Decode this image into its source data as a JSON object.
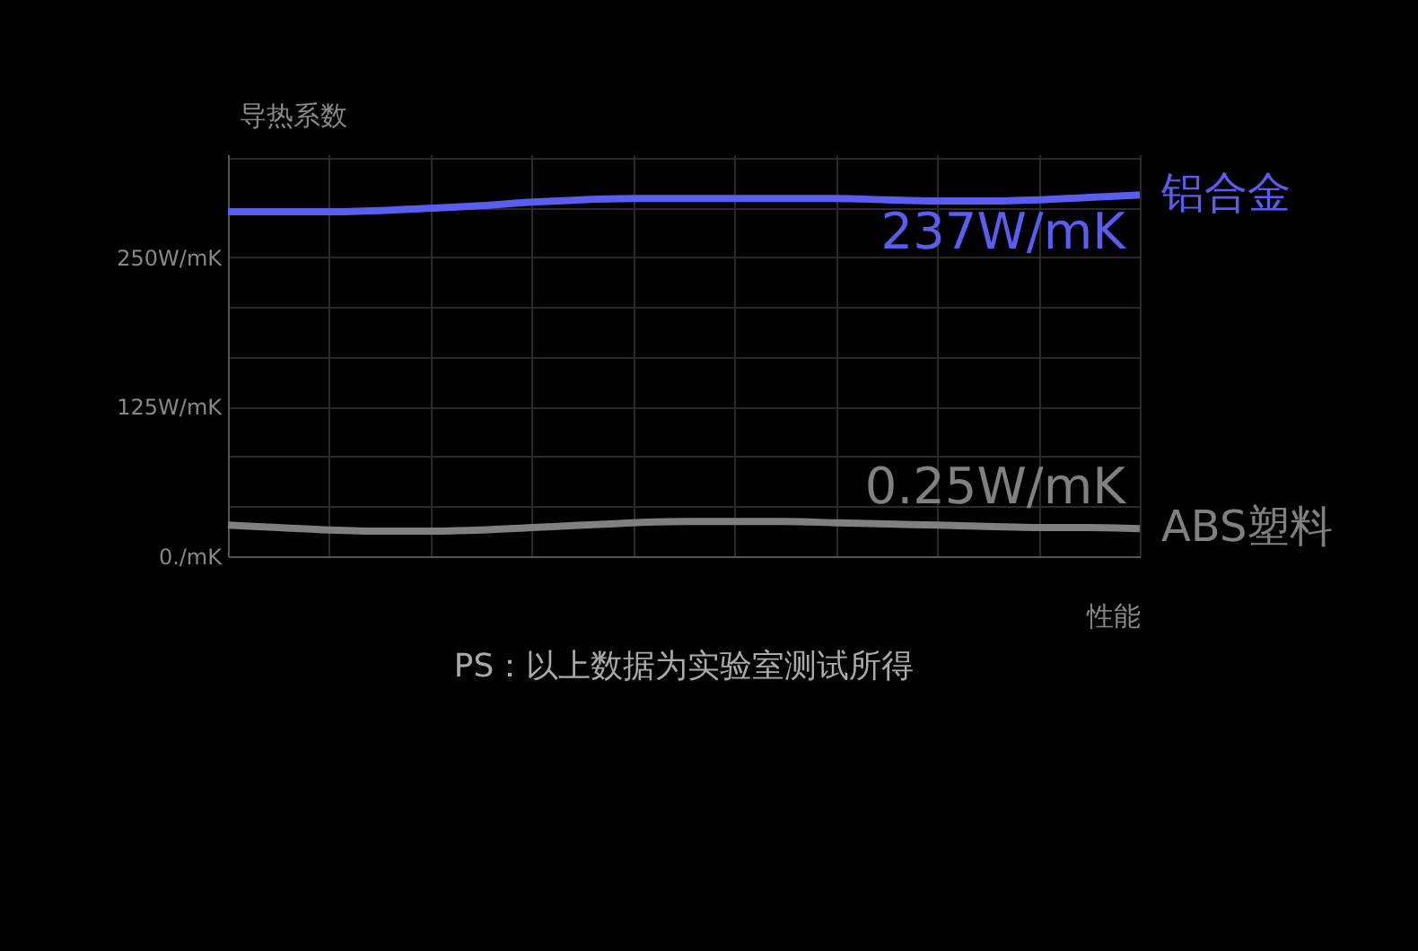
{
  "chart_data": {
    "type": "line",
    "ylabel": "导热系数",
    "xlabel": "性能",
    "categories": [
      null,
      null,
      null,
      null,
      null,
      null,
      null,
      null,
      null,
      null,
      null,
      null,
      null,
      null,
      null,
      null,
      null,
      null,
      null
    ],
    "series": [
      {
        "name": "铝合金",
        "color": "#5b5cf0",
        "values": [
          288,
          288,
          288,
          289,
          291,
          293,
          296,
          298,
          299,
          299,
          299,
          299,
          299,
          298,
          297,
          297,
          298,
          300,
          302
        ]
      },
      {
        "name": "ABS塑料",
        "color": "#808080",
        "values": [
          26,
          24,
          22,
          21,
          21,
          22,
          24,
          26,
          28,
          29,
          29,
          29,
          28,
          27,
          26,
          25,
          24,
          24,
          23
        ]
      }
    ],
    "ylim": [
      0,
      336
    ],
    "yticks": [
      {
        "value": 0,
        "label": "0./mK"
      },
      {
        "value": 41.67,
        "label": null
      },
      {
        "value": 83.33,
        "label": null
      },
      {
        "value": 125,
        "label": "125W/mK"
      },
      {
        "value": 166.67,
        "label": null
      },
      {
        "value": 208.33,
        "label": null
      },
      {
        "value": 250,
        "label": "250W/mK"
      },
      {
        "value": 291.67,
        "label": null
      },
      {
        "value": 333.33,
        "label": null
      }
    ],
    "grid": true,
    "marker": "none",
    "line_style": "solid",
    "annotations": [
      "237W/mK",
      "0.25W/mK",
      "PS：以上数据为实验室测试所得"
    ]
  }
}
